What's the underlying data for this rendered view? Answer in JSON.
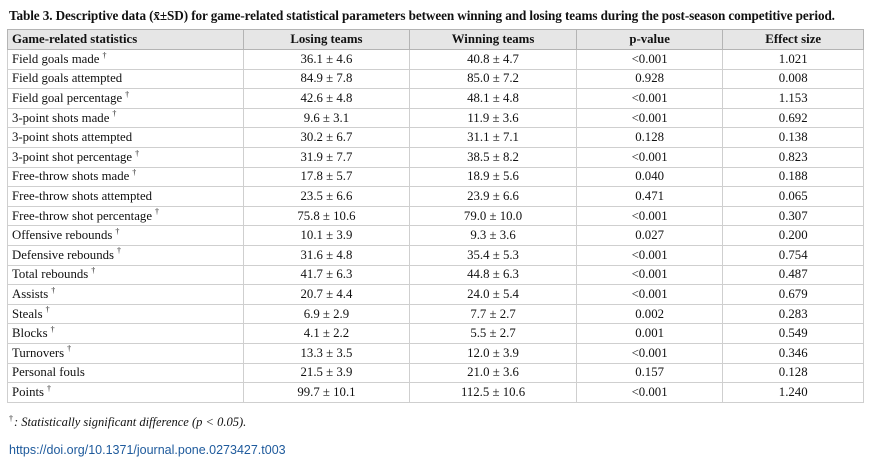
{
  "caption": "Table 3. Descriptive data (x̄±SD) for game-related statistical parameters between winning and losing teams during the post-season competitive period.",
  "headers": [
    "Game-related statistics",
    "Losing teams",
    "Winning teams",
    "p-value",
    "Effect size"
  ],
  "dagger": "†",
  "rows": [
    {
      "name": "Field goals made",
      "sig": true,
      "losing": "36.1 ± 4.6",
      "winning": "40.8 ± 4.7",
      "p": "<0.001",
      "effect": "1.021"
    },
    {
      "name": "Field goals attempted",
      "sig": false,
      "losing": "84.9 ± 7.8",
      "winning": "85.0 ± 7.2",
      "p": "0.928",
      "effect": "0.008"
    },
    {
      "name": "Field goal percentage",
      "sig": true,
      "losing": "42.6 ± 4.8",
      "winning": "48.1 ± 4.8",
      "p": "<0.001",
      "effect": "1.153"
    },
    {
      "name": "3-point shots made",
      "sig": true,
      "losing": "9.6 ± 3.1",
      "winning": "11.9 ± 3.6",
      "p": "<0.001",
      "effect": "0.692"
    },
    {
      "name": "3-point shots attempted",
      "sig": false,
      "losing": "30.2 ± 6.7",
      "winning": "31.1 ± 7.1",
      "p": "0.128",
      "effect": "0.138"
    },
    {
      "name": "3-point shot percentage",
      "sig": true,
      "losing": "31.9 ± 7.7",
      "winning": "38.5 ± 8.2",
      "p": "<0.001",
      "effect": "0.823"
    },
    {
      "name": "Free-throw shots made",
      "sig": true,
      "losing": "17.8 ± 5.7",
      "winning": "18.9 ± 5.6",
      "p": "0.040",
      "effect": "0.188"
    },
    {
      "name": "Free-throw shots attempted",
      "sig": false,
      "losing": "23.5 ± 6.6",
      "winning": "23.9 ± 6.6",
      "p": "0.471",
      "effect": "0.065"
    },
    {
      "name": "Free-throw shot percentage",
      "sig": true,
      "losing": "75.8 ± 10.6",
      "winning": "79.0 ± 10.0",
      "p": "<0.001",
      "effect": "0.307"
    },
    {
      "name": "Offensive rebounds",
      "sig": true,
      "losing": "10.1 ± 3.9",
      "winning": "9.3 ± 3.6",
      "p": "0.027",
      "effect": "0.200"
    },
    {
      "name": "Defensive rebounds",
      "sig": true,
      "losing": "31.6 ± 4.8",
      "winning": "35.4 ± 5.3",
      "p": "<0.001",
      "effect": "0.754"
    },
    {
      "name": "Total rebounds",
      "sig": true,
      "losing": "41.7 ± 6.3",
      "winning": "44.8 ± 6.3",
      "p": "<0.001",
      "effect": "0.487"
    },
    {
      "name": "Assists",
      "sig": true,
      "losing": "20.7 ± 4.4",
      "winning": "24.0 ± 5.4",
      "p": "<0.001",
      "effect": "0.679"
    },
    {
      "name": "Steals",
      "sig": true,
      "losing": "6.9 ± 2.9",
      "winning": "7.7 ± 2.7",
      "p": "0.002",
      "effect": "0.283"
    },
    {
      "name": "Blocks",
      "sig": true,
      "losing": "4.1 ± 2.2",
      "winning": "5.5 ± 2.7",
      "p": "0.001",
      "effect": "0.549"
    },
    {
      "name": "Turnovers",
      "sig": true,
      "losing": "13.3 ± 3.5",
      "winning": "12.0 ± 3.9",
      "p": "<0.001",
      "effect": "0.346"
    },
    {
      "name": "Personal fouls",
      "sig": false,
      "losing": "21.5 ± 3.9",
      "winning": "21.0 ± 3.6",
      "p": "0.157",
      "effect": "0.128"
    },
    {
      "name": "Points",
      "sig": true,
      "losing": "99.7 ± 10.1",
      "winning": "112.5 ± 10.6",
      "p": "<0.001",
      "effect": "1.240"
    }
  ],
  "footnote": ": Statistically significant difference (p < 0.05).",
  "doi": "https://doi.org/10.1371/journal.pone.0273427.t003"
}
